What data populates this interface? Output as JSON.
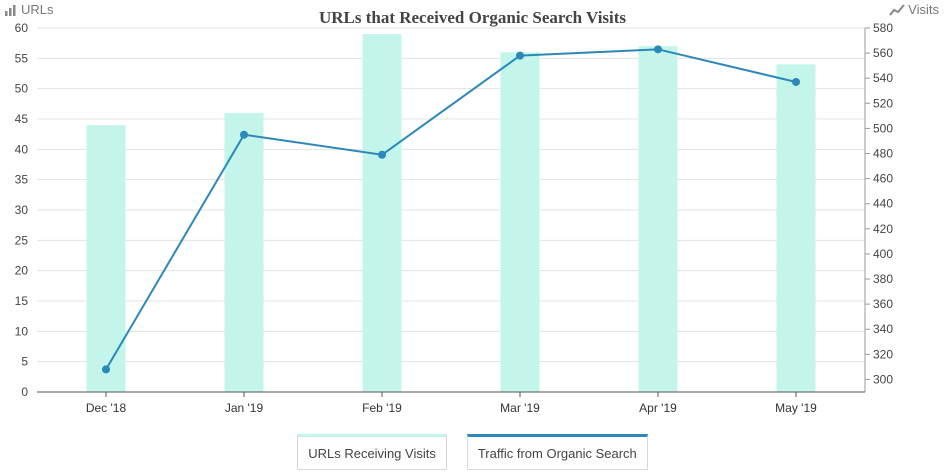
{
  "left_corner": {
    "label": "URLs",
    "icon": "bar-chart-icon"
  },
  "right_corner": {
    "label": "Visits",
    "icon": "line-chart-icon"
  },
  "legend": {
    "bar": "URLs Receiving Visits",
    "line": "Traffic from Organic Search"
  },
  "colors": {
    "bar": "#c3f5ea",
    "line": "#2b88b8",
    "grid": "#e3e3e3",
    "axis": "#555555"
  },
  "chart_data": {
    "type": "bar",
    "title": "URLs that Received Organic Search Visits",
    "categories": [
      "Dec '18",
      "Jan '19",
      "Feb '19",
      "Mar '19",
      "Apr '19",
      "May '19"
    ],
    "series": [
      {
        "name": "URLs Receiving Visits",
        "type": "bar",
        "axis": "left",
        "values": [
          44,
          46,
          59,
          56,
          57,
          54
        ]
      },
      {
        "name": "Traffic from Organic Search",
        "type": "line",
        "axis": "right",
        "values": [
          308,
          495,
          479,
          558,
          563,
          537
        ]
      }
    ],
    "ylim_left": [
      0,
      60
    ],
    "yticks_left": [
      0,
      5,
      10,
      15,
      20,
      25,
      30,
      35,
      40,
      45,
      50,
      55,
      60
    ],
    "ylim_right": [
      290,
      580
    ],
    "yticks_right": [
      300,
      320,
      340,
      360,
      380,
      400,
      420,
      440,
      460,
      480,
      500,
      520,
      540,
      560,
      580
    ],
    "grid": true,
    "legend_position": "bottom"
  }
}
